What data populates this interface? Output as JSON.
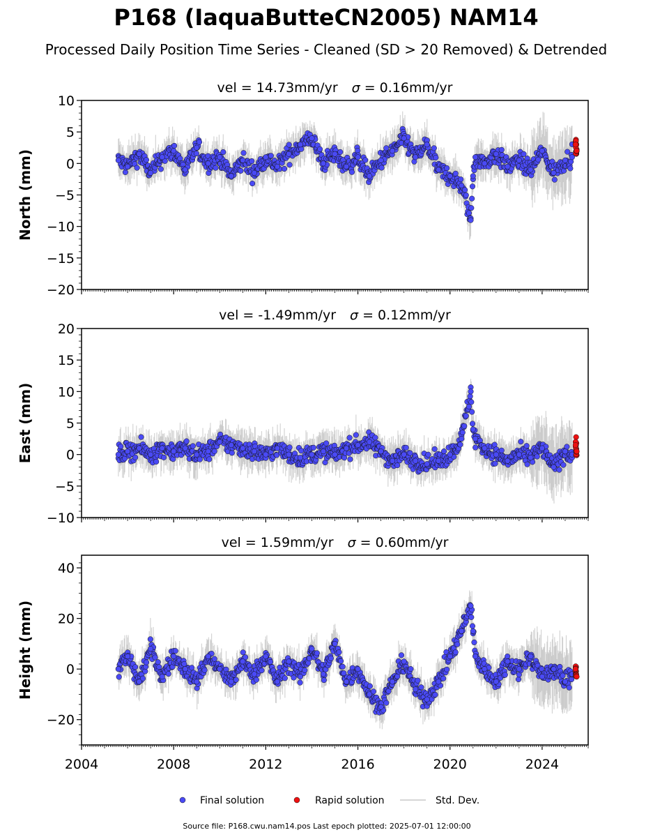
{
  "figure": {
    "title": "P168 (IaquaButteCN2005) NAM14",
    "subtitle": "Processed Daily Position Time Series - Cleaned (SD > 20 Removed) & Detrended",
    "footer": "Source file: P168.cwu.nam14.pos  Last epoch plotted: 2025-07-01 12:00:00",
    "colors": {
      "final": "#4a4af5",
      "rapid": "#ee1111",
      "stddev": "#b8b8b8",
      "edge": "#111111"
    },
    "legend": [
      {
        "label": "Final solution",
        "marker": "dot-blue"
      },
      {
        "label": "Rapid solution",
        "marker": "dot-red"
      },
      {
        "label": "Std. Dev.",
        "marker": "line-gray"
      }
    ]
  },
  "chart_data": [
    {
      "type": "scatter",
      "title": "vel = 14.73mm/yr   σ = 0.16mm/yr",
      "title_parts": {
        "left": "vel = 14.73mm/yr",
        "sigma": "σ",
        "right": " = 0.16mm/yr"
      },
      "ylabel": "North (mm)",
      "ylim": [
        -20,
        10
      ],
      "yticks": [
        -20,
        -15,
        -10,
        -5,
        0,
        5,
        10
      ],
      "ytick_labels": [
        "−20",
        "−15",
        "−10",
        "−5",
        "0",
        "5",
        "10"
      ],
      "xlim": [
        2004.0,
        2026.0
      ],
      "xticks": [
        2004,
        2008,
        2012,
        2016,
        2020,
        2024
      ],
      "show_xtick_labels": false,
      "grid": false,
      "series": [
        {
          "name": "Final solution",
          "x": [
            2005.6,
            2006.0,
            2006.5,
            2007.0,
            2007.5,
            2008.0,
            2008.5,
            2009.0,
            2009.5,
            2010.0,
            2010.5,
            2011.0,
            2011.5,
            2012.0,
            2012.5,
            2013.0,
            2013.5,
            2014.0,
            2014.5,
            2015.0,
            2015.5,
            2016.0,
            2016.5,
            2017.0,
            2017.5,
            2018.0,
            2018.5,
            2019.0,
            2019.5,
            2020.0,
            2020.5,
            2020.9,
            2021.0,
            2021.1,
            2021.5,
            2022.0,
            2022.5,
            2023.0,
            2023.5,
            2024.0,
            2024.5,
            2025.0,
            2025.3
          ],
          "y": [
            0.5,
            -0.5,
            1.5,
            -1.5,
            1.0,
            2.0,
            -1.0,
            2.5,
            0.0,
            1.0,
            -2.0,
            0.5,
            -1.5,
            1.0,
            -0.5,
            1.5,
            3.0,
            4.0,
            0.0,
            1.5,
            -0.5,
            1.0,
            -2.0,
            0.5,
            2.0,
            4.0,
            1.0,
            3.0,
            -1.0,
            -2.0,
            -3.5,
            -9.0,
            -2.0,
            1.0,
            0.0,
            1.5,
            -0.5,
            0.5,
            -1.0,
            2.0,
            -1.5,
            0.5,
            1.0
          ]
        },
        {
          "name": "Rapid solution",
          "x": [
            2025.45,
            2025.5
          ],
          "y": [
            3.0,
            2.0
          ]
        }
      ]
    },
    {
      "type": "scatter",
      "title": "vel = -1.49mm/yr   σ = 0.12mm/yr",
      "title_parts": {
        "left": "vel = -1.49mm/yr",
        "sigma": "σ",
        "right": " = 0.12mm/yr"
      },
      "ylabel": "East (mm)",
      "ylim": [
        -10,
        20
      ],
      "yticks": [
        -10,
        -5,
        0,
        5,
        10,
        15,
        20
      ],
      "ytick_labels": [
        "−10",
        "−5",
        "0",
        "5",
        "10",
        "15",
        "20"
      ],
      "xlim": [
        2004.0,
        2026.0
      ],
      "xticks": [
        2004,
        2008,
        2012,
        2016,
        2020,
        2024
      ],
      "show_xtick_labels": false,
      "grid": false,
      "series": [
        {
          "name": "Final solution",
          "x": [
            2005.6,
            2006.0,
            2006.5,
            2007.0,
            2007.5,
            2008.0,
            2008.5,
            2009.0,
            2009.5,
            2010.0,
            2010.5,
            2011.0,
            2011.5,
            2012.0,
            2012.5,
            2013.0,
            2013.5,
            2014.0,
            2014.5,
            2015.0,
            2015.5,
            2016.0,
            2016.5,
            2017.0,
            2017.5,
            2018.0,
            2018.5,
            2019.0,
            2019.5,
            2020.0,
            2020.5,
            2020.9,
            2021.0,
            2021.1,
            2021.5,
            2022.0,
            2022.5,
            2023.0,
            2023.5,
            2024.0,
            2024.5,
            2025.0,
            2025.3
          ],
          "y": [
            0.0,
            0.5,
            1.0,
            0.0,
            1.0,
            0.5,
            1.0,
            0.0,
            0.5,
            2.0,
            1.5,
            1.0,
            0.5,
            0.0,
            1.0,
            0.0,
            -0.5,
            0.0,
            0.5,
            0.0,
            1.0,
            1.5,
            2.0,
            0.5,
            -1.0,
            0.0,
            -1.0,
            -1.5,
            -1.0,
            0.0,
            2.5,
            10.0,
            4.0,
            2.5,
            1.0,
            0.0,
            -1.0,
            0.0,
            -0.5,
            1.0,
            -2.0,
            0.5,
            0.0
          ]
        },
        {
          "name": "Rapid solution",
          "x": [
            2025.45,
            2025.5
          ],
          "y": [
            1.5,
            0.5
          ]
        }
      ]
    },
    {
      "type": "scatter",
      "title": "vel = 1.59mm/yr   σ = 0.60mm/yr",
      "title_parts": {
        "left": "vel = 1.59mm/yr",
        "sigma": "σ",
        "right": " = 0.60mm/yr"
      },
      "ylabel": "Height (mm)",
      "ylim": [
        -30,
        45
      ],
      "yticks": [
        -20,
        0,
        20,
        40
      ],
      "ytick_labels": [
        "−20",
        "0",
        "20",
        "40"
      ],
      "xlim": [
        2004.0,
        2026.0
      ],
      "xticks": [
        2004,
        2008,
        2012,
        2016,
        2020,
        2024
      ],
      "xtick_labels": [
        "2004",
        "2008",
        "2012",
        "2016",
        "2020",
        "2024"
      ],
      "show_xtick_labels": true,
      "grid": false,
      "series": [
        {
          "name": "Final solution",
          "x": [
            2005.6,
            2006.0,
            2006.5,
            2007.0,
            2007.5,
            2008.0,
            2008.5,
            2009.0,
            2009.5,
            2010.0,
            2010.5,
            2011.0,
            2011.5,
            2012.0,
            2012.5,
            2013.0,
            2013.5,
            2014.0,
            2014.5,
            2015.0,
            2015.5,
            2016.0,
            2016.5,
            2017.0,
            2017.5,
            2018.0,
            2018.5,
            2019.0,
            2019.5,
            2020.0,
            2020.5,
            2020.9,
            2021.0,
            2021.1,
            2021.5,
            2022.0,
            2022.5,
            2023.0,
            2023.5,
            2024.0,
            2024.5,
            2025.0,
            2025.3
          ],
          "y": [
            0.0,
            5.0,
            -5.0,
            8.0,
            -3.0,
            5.0,
            0.0,
            -5.0,
            5.0,
            0.0,
            -5.0,
            3.0,
            -2.0,
            5.0,
            -5.0,
            3.0,
            -3.0,
            8.0,
            -2.0,
            10.0,
            -5.0,
            0.0,
            -10.0,
            -15.0,
            -5.0,
            3.0,
            -8.0,
            -12.0,
            -5.0,
            5.0,
            15.0,
            25.0,
            15.0,
            5.0,
            0.0,
            -5.0,
            3.0,
            0.0,
            5.0,
            -3.0,
            0.0,
            -5.0,
            -2.0
          ]
        },
        {
          "name": "Rapid solution",
          "x": [
            2025.45,
            2025.5
          ],
          "y": [
            0.0,
            -3.0
          ]
        }
      ]
    }
  ]
}
